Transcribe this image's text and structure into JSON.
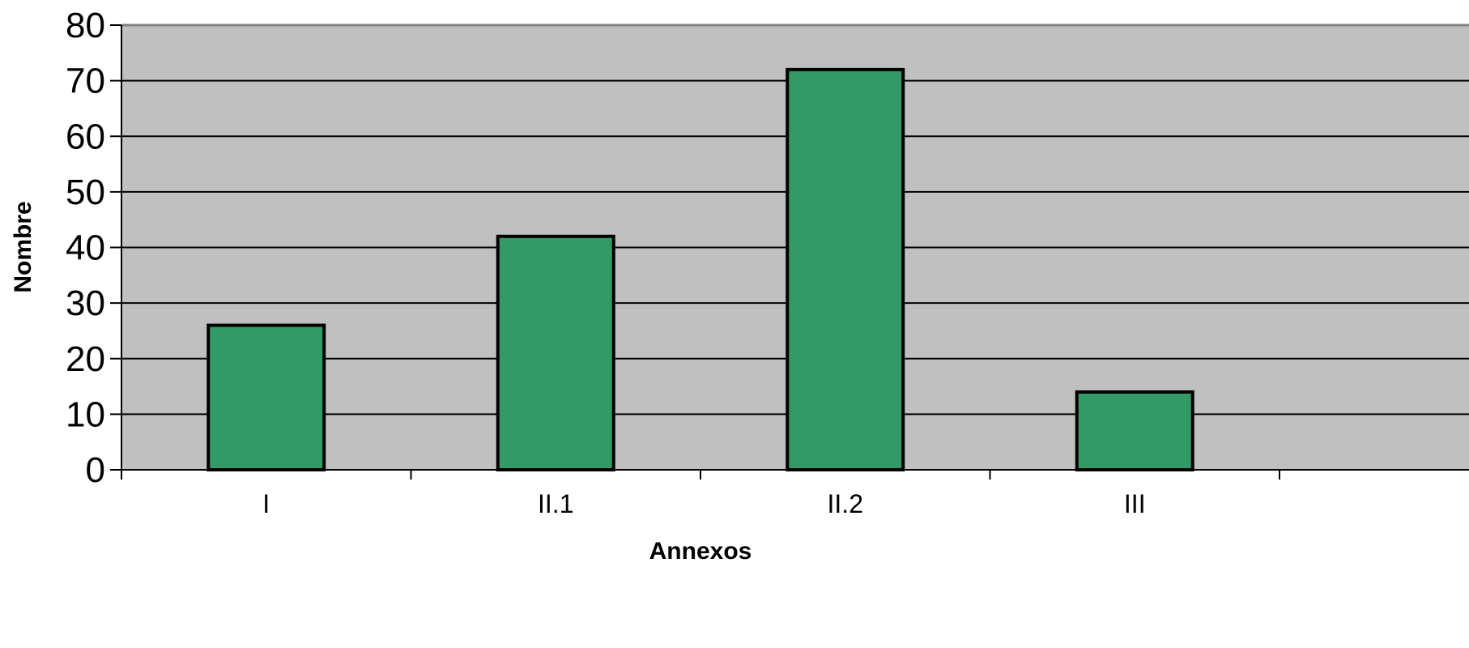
{
  "chart_data": {
    "type": "bar",
    "title": "",
    "xlabel": "Annexos",
    "ylabel": "Nombre",
    "categories": [
      "I",
      "II.1",
      "II.2",
      "III"
    ],
    "values": [
      26,
      42,
      72,
      14
    ],
    "ylim": [
      0,
      80
    ],
    "yticks": [
      0,
      10,
      20,
      30,
      40,
      50,
      60,
      70,
      80
    ],
    "grid": true,
    "legend": "none",
    "colors": {
      "bar_fill": "#339966",
      "bar_stroke": "#000000",
      "plot_background": "#c0c0c0",
      "gridline": "#000000"
    }
  }
}
